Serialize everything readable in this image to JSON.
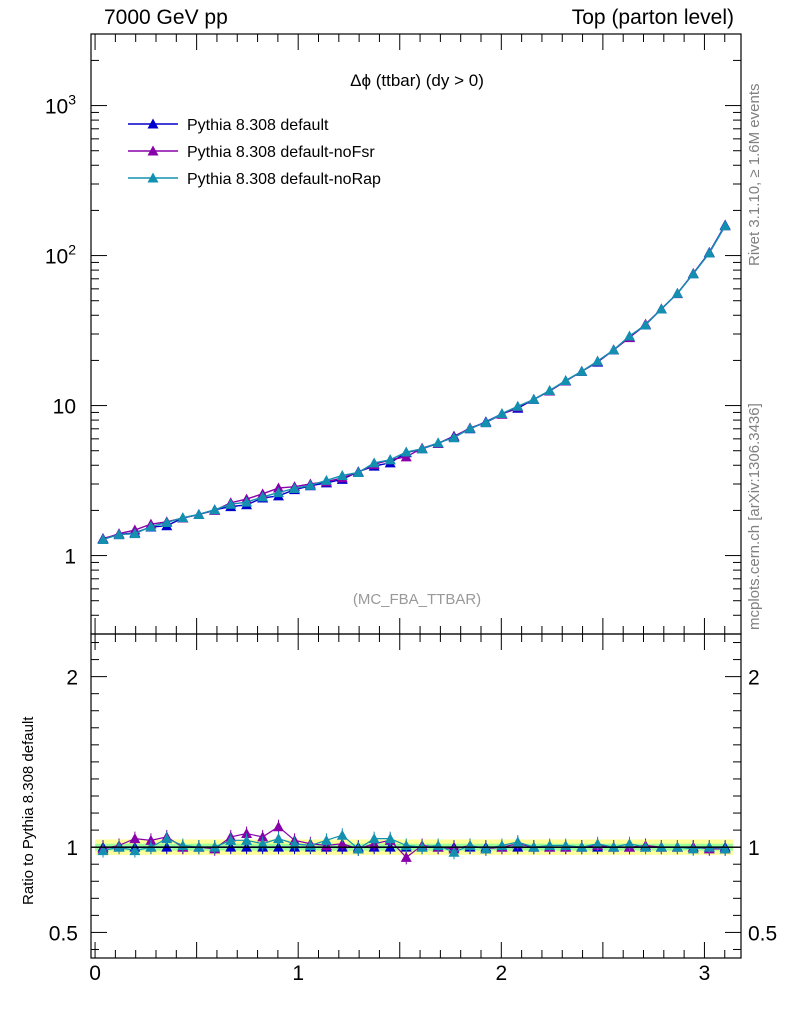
{
  "header": {
    "left": "7000 GeV pp",
    "right": "Top (parton level)"
  },
  "side_labels": {
    "rivet": "Rivet 3.1.10, ≥ 1.6M events",
    "mcplots": "mcplots.cern.ch [arXiv:1306.3436]"
  },
  "plot": {
    "title": "Δϕ (ttbar) (dy > 0)",
    "watermark": "(MC_FBA_TTBAR)",
    "ratio_ylabel": "Ratio to Pythia 8.308 default"
  },
  "chart_data": [
    {
      "type": "line",
      "panel": "main",
      "title": "Δϕ (ttbar) (dy > 0)",
      "xlabel": "",
      "ylabel": "",
      "xlim": [
        -0.02,
        3.18
      ],
      "ylim": [
        0.3,
        3000
      ],
      "log_y": true,
      "x_ticks": [
        "0",
        "1",
        "2",
        "3"
      ],
      "y_ticks": [
        "1",
        "10",
        "10²",
        "10³"
      ],
      "legend_position": "top-left",
      "x": [
        0.039,
        0.118,
        0.196,
        0.275,
        0.353,
        0.432,
        0.511,
        0.589,
        0.668,
        0.746,
        0.825,
        0.903,
        0.982,
        1.06,
        1.139,
        1.217,
        1.296,
        1.374,
        1.453,
        1.532,
        1.61,
        1.689,
        1.767,
        1.846,
        1.924,
        2.003,
        2.081,
        2.16,
        2.238,
        2.317,
        2.396,
        2.474,
        2.553,
        2.631,
        2.71,
        2.788,
        2.867,
        2.945,
        3.024,
        3.102
      ],
      "series": [
        {
          "name": "Pythia 8.308 default",
          "color": "#0000cc",
          "values": [
            1.3,
            1.38,
            1.42,
            1.55,
            1.58,
            1.78,
            1.88,
            2.02,
            2.12,
            2.18,
            2.42,
            2.5,
            2.75,
            2.92,
            3.05,
            3.22,
            3.62,
            3.95,
            4.15,
            4.85,
            5.15,
            5.6,
            6.25,
            7.0,
            7.8,
            8.8,
            9.6,
            11.0,
            12.5,
            14.6,
            16.9,
            19.5,
            23.5,
            28.5,
            34.5,
            44.0,
            56.0,
            76.0,
            105.0,
            160.0
          ]
        },
        {
          "name": "Pythia 8.308 default-noFsr",
          "color": "#8800aa",
          "values": [
            1.29,
            1.4,
            1.48,
            1.62,
            1.68,
            1.78,
            1.88,
            2.0,
            2.25,
            2.38,
            2.58,
            2.82,
            2.88,
            3.0,
            3.1,
            3.3,
            3.6,
            4.05,
            4.35,
            4.55,
            5.2,
            5.6,
            6.2,
            7.1,
            7.7,
            8.75,
            9.8,
            11.0,
            12.5,
            14.6,
            16.9,
            19.7,
            23.5,
            28.4,
            34.9,
            44.0,
            55.8,
            75.8,
            104.0,
            158.0
          ]
        },
        {
          "name": "Pythia 8.308 default-noRap",
          "color": "#1390b0",
          "values": [
            1.28,
            1.38,
            1.4,
            1.56,
            1.66,
            1.79,
            1.88,
            2.02,
            2.2,
            2.27,
            2.46,
            2.63,
            2.8,
            2.94,
            3.17,
            3.42,
            3.58,
            4.15,
            4.35,
            4.9,
            5.15,
            5.65,
            6.1,
            7.05,
            7.7,
            8.85,
            9.9,
            11.0,
            12.6,
            14.7,
            16.9,
            19.8,
            23.5,
            29.1,
            34.5,
            44.0,
            56.0,
            75.5,
            104.0,
            158.0
          ]
        }
      ]
    },
    {
      "type": "line",
      "panel": "ratio",
      "xlabel": "",
      "ylabel": "Ratio to Pythia 8.308 default",
      "xlim": [
        -0.02,
        3.18
      ],
      "ylim": [
        0.35,
        2.25
      ],
      "x_ticks": [
        "0",
        "1",
        "2",
        "3"
      ],
      "y_ticks": [
        "0.5",
        "1",
        "2"
      ],
      "reference_band": {
        "center": 1.0,
        "halfwidth_inner": 0.02,
        "halfwidth_outer": 0.045
      },
      "x": [
        0.039,
        0.118,
        0.196,
        0.275,
        0.353,
        0.432,
        0.511,
        0.589,
        0.668,
        0.746,
        0.825,
        0.903,
        0.982,
        1.06,
        1.139,
        1.217,
        1.296,
        1.374,
        1.453,
        1.532,
        1.61,
        1.689,
        1.767,
        1.846,
        1.924,
        2.003,
        2.081,
        2.16,
        2.238,
        2.317,
        2.396,
        2.474,
        2.553,
        2.631,
        2.71,
        2.788,
        2.867,
        2.945,
        3.024,
        3.102
      ],
      "series": [
        {
          "name": "Pythia 8.308 default",
          "color": "#0000cc",
          "values": [
            1.0,
            1.0,
            1.0,
            1.0,
            1.0,
            1.0,
            1.0,
            1.0,
            1.0,
            1.0,
            1.0,
            1.0,
            1.0,
            1.0,
            1.0,
            1.0,
            1.0,
            1.0,
            1.0,
            1.0,
            1.0,
            1.0,
            1.0,
            1.0,
            1.0,
            1.0,
            1.0,
            1.0,
            1.0,
            1.0,
            1.0,
            1.0,
            1.0,
            1.0,
            1.0,
            1.0,
            1.0,
            1.0,
            1.0,
            1.0
          ]
        },
        {
          "name": "Pythia 8.308 default-noFsr",
          "color": "#8800aa",
          "values": [
            0.99,
            1.01,
            1.05,
            1.04,
            1.06,
            1.0,
            1.0,
            0.99,
            1.06,
            1.08,
            1.06,
            1.12,
            1.04,
            1.02,
            1.01,
            1.02,
            0.99,
            1.02,
            1.04,
            0.94,
            1.01,
            1.0,
            0.99,
            1.01,
            0.99,
            1.0,
            1.02,
            1.0,
            1.0,
            1.0,
            1.0,
            1.01,
            1.0,
            1.0,
            1.01,
            1.0,
            1.0,
            1.0,
            0.99,
            0.99
          ]
        },
        {
          "name": "Pythia 8.308 default-noRap",
          "color": "#1390b0",
          "values": [
            0.98,
            1.0,
            0.98,
            1.0,
            1.05,
            1.01,
            1.0,
            1.0,
            1.04,
            1.04,
            1.02,
            1.05,
            1.02,
            1.01,
            1.04,
            1.07,
            0.99,
            1.05,
            1.05,
            1.01,
            1.0,
            1.01,
            0.97,
            1.01,
            0.99,
            1.01,
            1.03,
            1.0,
            1.01,
            1.01,
            1.0,
            1.02,
            1.0,
            1.02,
            1.0,
            1.0,
            1.0,
            0.99,
            1.0,
            0.99
          ]
        }
      ]
    }
  ]
}
